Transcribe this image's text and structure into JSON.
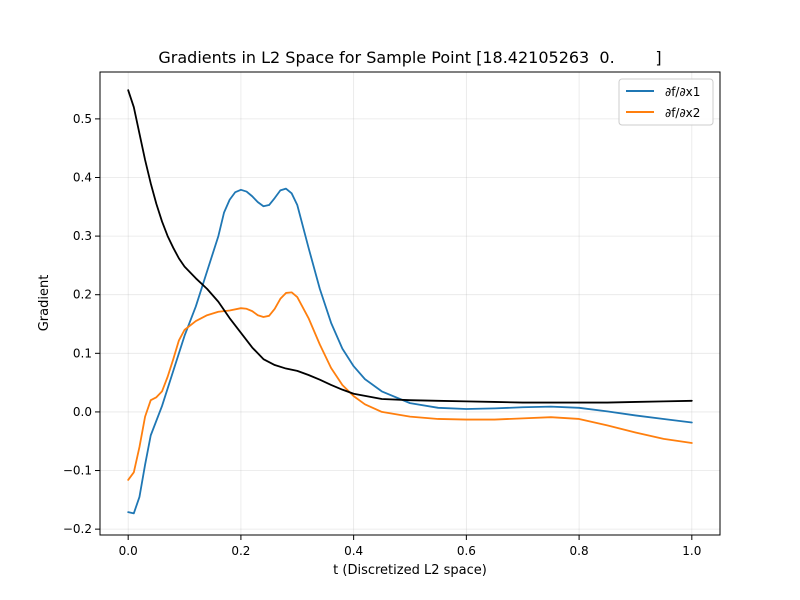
{
  "chart_data": {
    "type": "line",
    "title": "Gradients in L2 Space for Sample Point [18.42105263  0.        ]",
    "xlabel": "t (Discretized L2 space)",
    "ylabel": "Gradient",
    "xlim": [
      -0.05,
      1.05
    ],
    "ylim": [
      -0.21,
      0.58
    ],
    "xticks": [
      0.0,
      0.2,
      0.4,
      0.6,
      0.8,
      1.0
    ],
    "xtick_labels": [
      "0.0",
      "0.2",
      "0.4",
      "0.6",
      "0.8",
      "1.0"
    ],
    "yticks": [
      -0.2,
      -0.1,
      0.0,
      0.1,
      0.2,
      0.3,
      0.4,
      0.5
    ],
    "ytick_labels": [
      "−0.2",
      "−0.1",
      "0.0",
      "0.1",
      "0.2",
      "0.3",
      "0.4",
      "0.5"
    ],
    "grid": true,
    "legend_position": "top-right",
    "series": [
      {
        "name": "∂f/∂x1",
        "color": "#1f77b4",
        "x": [
          0.0,
          0.01,
          0.02,
          0.03,
          0.04,
          0.06,
          0.08,
          0.1,
          0.12,
          0.14,
          0.16,
          0.17,
          0.18,
          0.19,
          0.2,
          0.21,
          0.22,
          0.23,
          0.24,
          0.25,
          0.26,
          0.27,
          0.28,
          0.29,
          0.3,
          0.32,
          0.34,
          0.36,
          0.38,
          0.4,
          0.42,
          0.45,
          0.5,
          0.55,
          0.6,
          0.65,
          0.7,
          0.75,
          0.8,
          0.85,
          0.9,
          0.95,
          1.0
        ],
        "y": [
          -0.171,
          -0.173,
          -0.145,
          -0.09,
          -0.04,
          0.01,
          0.07,
          0.13,
          0.18,
          0.24,
          0.3,
          0.34,
          0.362,
          0.375,
          0.379,
          0.376,
          0.368,
          0.358,
          0.351,
          0.353,
          0.365,
          0.378,
          0.381,
          0.373,
          0.353,
          0.28,
          0.21,
          0.152,
          0.108,
          0.078,
          0.056,
          0.035,
          0.015,
          0.007,
          0.005,
          0.006,
          0.008,
          0.009,
          0.007,
          0.001,
          -0.006,
          -0.012,
          -0.018
        ]
      },
      {
        "name": "∂f/∂x2",
        "color": "#ff7f0e",
        "x": [
          0.0,
          0.01,
          0.02,
          0.03,
          0.04,
          0.05,
          0.06,
          0.07,
          0.08,
          0.09,
          0.1,
          0.12,
          0.14,
          0.16,
          0.18,
          0.2,
          0.21,
          0.22,
          0.23,
          0.24,
          0.25,
          0.26,
          0.27,
          0.28,
          0.29,
          0.3,
          0.32,
          0.34,
          0.36,
          0.38,
          0.4,
          0.42,
          0.45,
          0.5,
          0.55,
          0.6,
          0.65,
          0.7,
          0.75,
          0.8,
          0.85,
          0.9,
          0.95,
          1.0
        ],
        "y": [
          -0.116,
          -0.103,
          -0.06,
          -0.008,
          0.02,
          0.025,
          0.035,
          0.06,
          0.09,
          0.122,
          0.14,
          0.155,
          0.165,
          0.171,
          0.173,
          0.177,
          0.176,
          0.172,
          0.165,
          0.162,
          0.164,
          0.176,
          0.193,
          0.203,
          0.204,
          0.196,
          0.16,
          0.115,
          0.075,
          0.046,
          0.027,
          0.013,
          0.0,
          -0.008,
          -0.012,
          -0.013,
          -0.013,
          -0.011,
          -0.009,
          -0.012,
          -0.023,
          -0.035,
          -0.046,
          -0.053
        ]
      },
      {
        "color": "#000000",
        "x": [
          0.0,
          0.01,
          0.02,
          0.03,
          0.04,
          0.05,
          0.06,
          0.07,
          0.08,
          0.09,
          0.1,
          0.12,
          0.14,
          0.16,
          0.18,
          0.2,
          0.22,
          0.24,
          0.26,
          0.28,
          0.3,
          0.32,
          0.34,
          0.36,
          0.38,
          0.4,
          0.45,
          0.5,
          0.55,
          0.6,
          0.65,
          0.7,
          0.75,
          0.8,
          0.85,
          0.9,
          0.95,
          1.0
        ],
        "y": [
          0.549,
          0.52,
          0.475,
          0.43,
          0.39,
          0.355,
          0.325,
          0.3,
          0.28,
          0.262,
          0.248,
          0.228,
          0.21,
          0.188,
          0.16,
          0.135,
          0.11,
          0.09,
          0.08,
          0.074,
          0.07,
          0.063,
          0.055,
          0.046,
          0.038,
          0.031,
          0.022,
          0.02,
          0.019,
          0.018,
          0.017,
          0.016,
          0.016,
          0.016,
          0.016,
          0.017,
          0.018,
          0.019
        ]
      }
    ]
  }
}
